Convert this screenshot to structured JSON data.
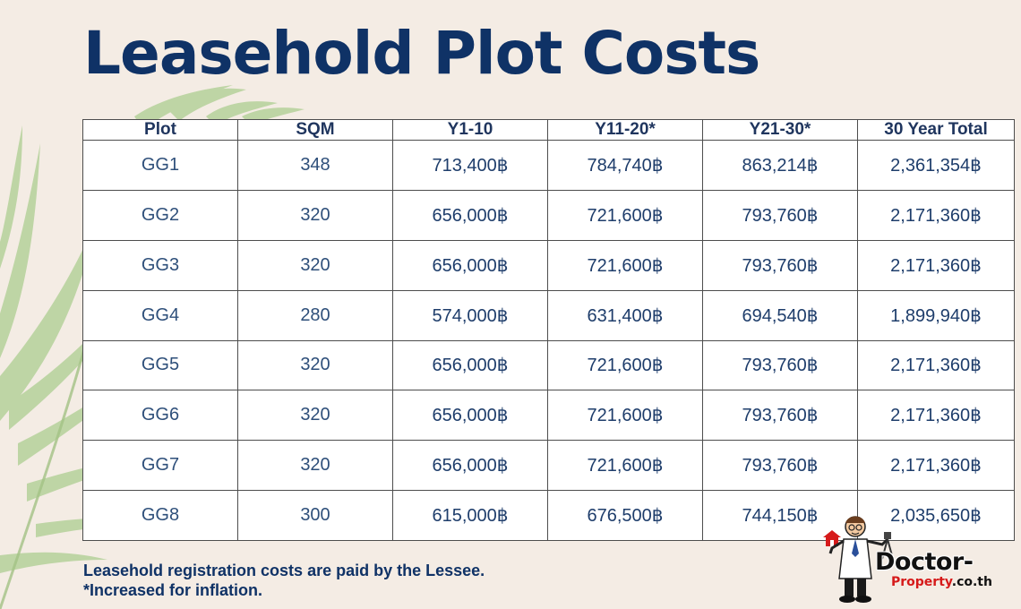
{
  "title": "Leasehold Plot Costs",
  "table": {
    "headers": [
      "Plot",
      "SQM",
      "Y1-10",
      "Y11-20*",
      "Y21-30*",
      "30 Year Total"
    ],
    "rows": [
      [
        "GG1",
        "348",
        "713,400฿",
        "784,740฿",
        "863,214฿",
        "2,361,354฿"
      ],
      [
        "GG2",
        "320",
        "656,000฿",
        "721,600฿",
        "793,760฿",
        "2,171,360฿"
      ],
      [
        "GG3",
        "320",
        "656,000฿",
        "721,600฿",
        "793,760฿",
        "2,171,360฿"
      ],
      [
        "GG4",
        "280",
        "574,000฿",
        "631,400฿",
        "694,540฿",
        "1,899,940฿"
      ],
      [
        "GG5",
        "320",
        "656,000฿",
        "721,600฿",
        "793,760฿",
        "2,171,360฿"
      ],
      [
        "GG6",
        "320",
        "656,000฿",
        "721,600฿",
        "793,760฿",
        "2,171,360฿"
      ],
      [
        "GG7",
        "320",
        "656,000฿",
        "721,600฿",
        "793,760฿",
        "2,171,360฿"
      ],
      [
        "GG8",
        "300",
        "615,000฿",
        "676,500฿",
        "744,150฿",
        "2,035,650฿"
      ]
    ]
  },
  "footnotes": {
    "line1": "Leasehold registration costs are paid by the Lessee.",
    "line2": "*Increased for inflation."
  },
  "logo": {
    "icon": "doctor-mascot-icon",
    "text_main": "Doctor-",
    "text_sub_red": "Property",
    "text_sub_dark": ".co.th"
  },
  "colors": {
    "background": "#f4ece4",
    "title": "#0f3266",
    "table_text": "#1e3d6b",
    "border": "#4d4d4d",
    "palm": "#a9c88f"
  }
}
